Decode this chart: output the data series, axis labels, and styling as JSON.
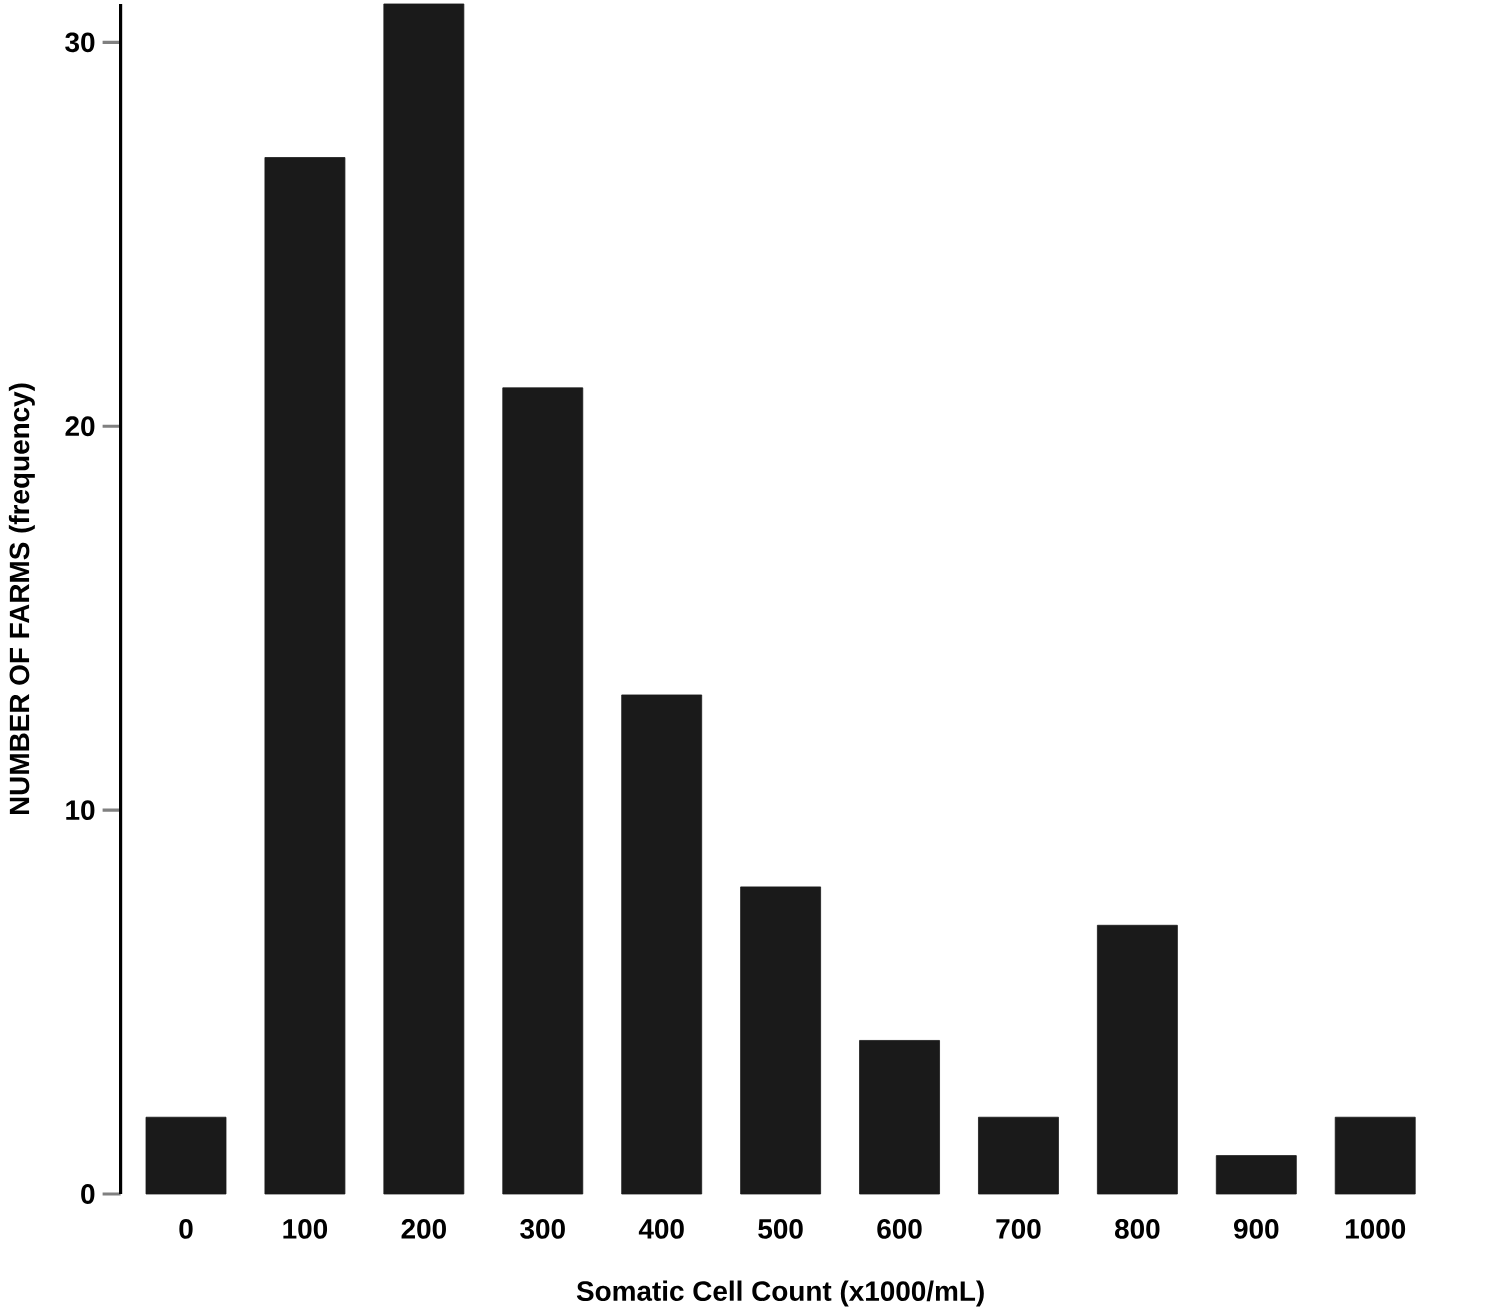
{
  "chart_data": {
    "type": "bar",
    "xlabel": "Somatic Cell Count (x1000/mL)",
    "ylabel": "NUMBER OF  FARMS (frequency)",
    "categories": [
      "0",
      "100",
      "200",
      "300",
      "400",
      "500",
      "600",
      "700",
      "800",
      "900",
      "1000"
    ],
    "values": [
      2,
      27,
      31,
      21,
      13,
      8,
      4,
      2,
      7,
      1,
      2
    ],
    "color": "#1a1a1a",
    "ylim": [
      0,
      31
    ],
    "yticks": [
      0,
      10,
      20,
      30
    ]
  }
}
